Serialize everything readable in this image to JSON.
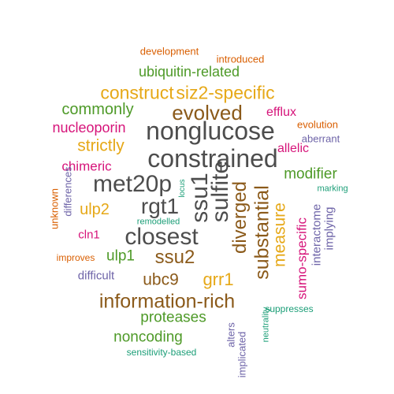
{
  "palette": {
    "gray": "#4d4d4d",
    "olive": "#8b5a1a",
    "green": "#4e9a28",
    "gold": "#e6a817",
    "magenta": "#d6147a",
    "purple": "#6e64a8",
    "orange": "#d95f02",
    "teal": "#1b9e77"
  },
  "words": [
    {
      "text": "constrained",
      "size": 32,
      "color": "#4d4d4d",
      "vertical": false
    },
    {
      "text": "nonglucose",
      "size": 32,
      "color": "#4d4d4d",
      "vertical": false
    },
    {
      "text": "met20p",
      "size": 30,
      "color": "#4d4d4d",
      "vertical": false
    },
    {
      "text": "closest",
      "size": 30,
      "color": "#4d4d4d",
      "vertical": false
    },
    {
      "text": "rgt1",
      "size": 28,
      "color": "#4d4d4d",
      "vertical": false
    },
    {
      "text": "sulfite",
      "size": 30,
      "color": "#4d4d4d",
      "vertical": true
    },
    {
      "text": "ssu1",
      "size": 30,
      "color": "#4d4d4d",
      "vertical": true
    },
    {
      "text": "evolved",
      "size": 26,
      "color": "#8b5a1a",
      "vertical": false
    },
    {
      "text": "information-rich",
      "size": 25,
      "color": "#8b5a1a",
      "vertical": false
    },
    {
      "text": "substantial",
      "size": 25,
      "color": "#8b5a1a",
      "vertical": true
    },
    {
      "text": "diverged",
      "size": 24,
      "color": "#8b5a1a",
      "vertical": true
    },
    {
      "text": "ssu2",
      "size": 24,
      "color": "#8b5a1a",
      "vertical": false
    },
    {
      "text": "ubc9",
      "size": 21,
      "color": "#8b5a1a",
      "vertical": false
    },
    {
      "text": "construct",
      "size": 23,
      "color": "#e6a817",
      "vertical": false
    },
    {
      "text": "siz2-specific",
      "size": 23,
      "color": "#e6a817",
      "vertical": false
    },
    {
      "text": "strictly",
      "size": 21,
      "color": "#e6a817",
      "vertical": false
    },
    {
      "text": "grr1",
      "size": 22,
      "color": "#e6a817",
      "vertical": false
    },
    {
      "text": "measure",
      "size": 21,
      "color": "#e6a817",
      "vertical": true
    },
    {
      "text": "ulp2",
      "size": 20,
      "color": "#e6a817",
      "vertical": false
    },
    {
      "text": "ubiquitin-related",
      "size": 18,
      "color": "#4e9a28",
      "vertical": false
    },
    {
      "text": "commonly",
      "size": 20,
      "color": "#4e9a28",
      "vertical": false
    },
    {
      "text": "modifier",
      "size": 19,
      "color": "#4e9a28",
      "vertical": false
    },
    {
      "text": "ulp1",
      "size": 19,
      "color": "#4e9a28",
      "vertical": false
    },
    {
      "text": "proteases",
      "size": 19,
      "color": "#4e9a28",
      "vertical": false
    },
    {
      "text": "noncoding",
      "size": 19,
      "color": "#4e9a28",
      "vertical": false
    },
    {
      "text": "nucleoporin",
      "size": 18,
      "color": "#d6147a",
      "vertical": false
    },
    {
      "text": "chimeric",
      "size": 17,
      "color": "#d6147a",
      "vertical": false
    },
    {
      "text": "efflux",
      "size": 16,
      "color": "#d6147a",
      "vertical": false
    },
    {
      "text": "allelic",
      "size": 16,
      "color": "#d6147a",
      "vertical": false
    },
    {
      "text": "cln1",
      "size": 15,
      "color": "#d6147a",
      "vertical": false
    },
    {
      "text": "sumo-specific",
      "size": 17,
      "color": "#d6147a",
      "vertical": true
    },
    {
      "text": "interactome",
      "size": 15,
      "color": "#6e64a8",
      "vertical": true
    },
    {
      "text": "implying",
      "size": 15,
      "color": "#6e64a8",
      "vertical": true
    },
    {
      "text": "difficult",
      "size": 15,
      "color": "#6e64a8",
      "vertical": false
    },
    {
      "text": "aberrant",
      "size": 13,
      "color": "#6e64a8",
      "vertical": false
    },
    {
      "text": "differences",
      "size": 13,
      "color": "#6e64a8",
      "vertical": true
    },
    {
      "text": "alters",
      "size": 13,
      "color": "#6e64a8",
      "vertical": true
    },
    {
      "text": "implicated",
      "size": 13,
      "color": "#6e64a8",
      "vertical": true
    },
    {
      "text": "development",
      "size": 13,
      "color": "#d95f02",
      "vertical": false
    },
    {
      "text": "introduced",
      "size": 13,
      "color": "#d95f02",
      "vertical": false
    },
    {
      "text": "evolution",
      "size": 13,
      "color": "#d95f02",
      "vertical": false
    },
    {
      "text": "unknown",
      "size": 13,
      "color": "#d95f02",
      "vertical": true
    },
    {
      "text": "improves",
      "size": 12,
      "color": "#d95f02",
      "vertical": false
    },
    {
      "text": "marking",
      "size": 11,
      "color": "#1b9e77",
      "vertical": false
    },
    {
      "text": "remodelled",
      "size": 11,
      "color": "#1b9e77",
      "vertical": false
    },
    {
      "text": "locus",
      "size": 10,
      "color": "#1b9e77",
      "vertical": true
    },
    {
      "text": "suppresses",
      "size": 12,
      "color": "#1b9e77",
      "vertical": false
    },
    {
      "text": "neutrality",
      "size": 11,
      "color": "#1b9e77",
      "vertical": true
    },
    {
      "text": "sensitivity-based",
      "size": 12,
      "color": "#1b9e77",
      "vertical": false
    }
  ]
}
